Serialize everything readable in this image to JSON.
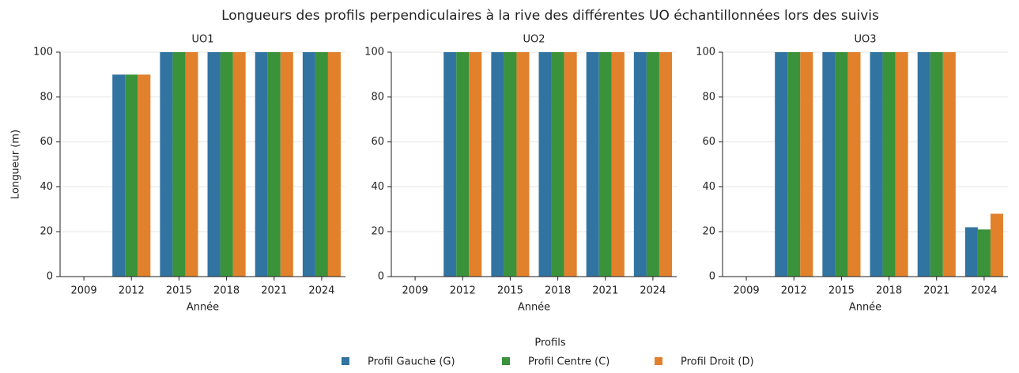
{
  "title": "Longueurs des profils perpendiculaires à la rive des différentes UO échantillonnées lors des suivis",
  "legend": {
    "title": "Profils"
  },
  "chart_data": [
    {
      "type": "bar",
      "title": "UO1",
      "xlabel": "Année",
      "ylabel": "Longueur (m)",
      "categories": [
        "2009",
        "2012",
        "2015",
        "2018",
        "2021",
        "2024"
      ],
      "series": [
        {
          "name": "Profil Gauche (G)",
          "color": "#3274a1",
          "values": [
            0,
            90,
            100,
            100,
            100,
            100
          ]
        },
        {
          "name": "Profil Centre (C)",
          "color": "#3a923a",
          "values": [
            0,
            90,
            100,
            100,
            100,
            100
          ]
        },
        {
          "name": "Profil Droit (D)",
          "color": "#e1812c",
          "values": [
            0,
            90,
            100,
            100,
            100,
            100
          ]
        }
      ],
      "ylim": [
        0,
        100
      ],
      "yticks": [
        0,
        20,
        40,
        60,
        80,
        100
      ],
      "grid": true
    },
    {
      "type": "bar",
      "title": "UO2",
      "xlabel": "Année",
      "categories": [
        "2009",
        "2012",
        "2015",
        "2018",
        "2021",
        "2024"
      ],
      "series": [
        {
          "color": "#3274a1",
          "values": [
            0,
            100,
            100,
            100,
            100,
            100
          ]
        },
        {
          "color": "#3a923a",
          "values": [
            0,
            100,
            100,
            100,
            100,
            100
          ]
        },
        {
          "color": "#e1812c",
          "values": [
            0,
            100,
            100,
            100,
            100,
            100
          ]
        }
      ],
      "ylim": [
        0,
        100
      ],
      "yticks": [
        0,
        20,
        40,
        60,
        80,
        100
      ],
      "grid": true
    },
    {
      "type": "bar",
      "title": "UO3",
      "xlabel": "Année",
      "categories": [
        "2009",
        "2012",
        "2015",
        "2018",
        "2021",
        "2024"
      ],
      "series": [
        {
          "color": "#3274a1",
          "values": [
            0,
            100,
            100,
            100,
            100,
            22
          ]
        },
        {
          "color": "#3a923a",
          "values": [
            0,
            100,
            100,
            100,
            100,
            21
          ]
        },
        {
          "color": "#e1812c",
          "values": [
            0,
            100,
            100,
            100,
            100,
            28
          ]
        }
      ],
      "ylim": [
        0,
        100
      ],
      "yticks": [
        0,
        20,
        40,
        60,
        80,
        100
      ],
      "grid": true
    }
  ]
}
